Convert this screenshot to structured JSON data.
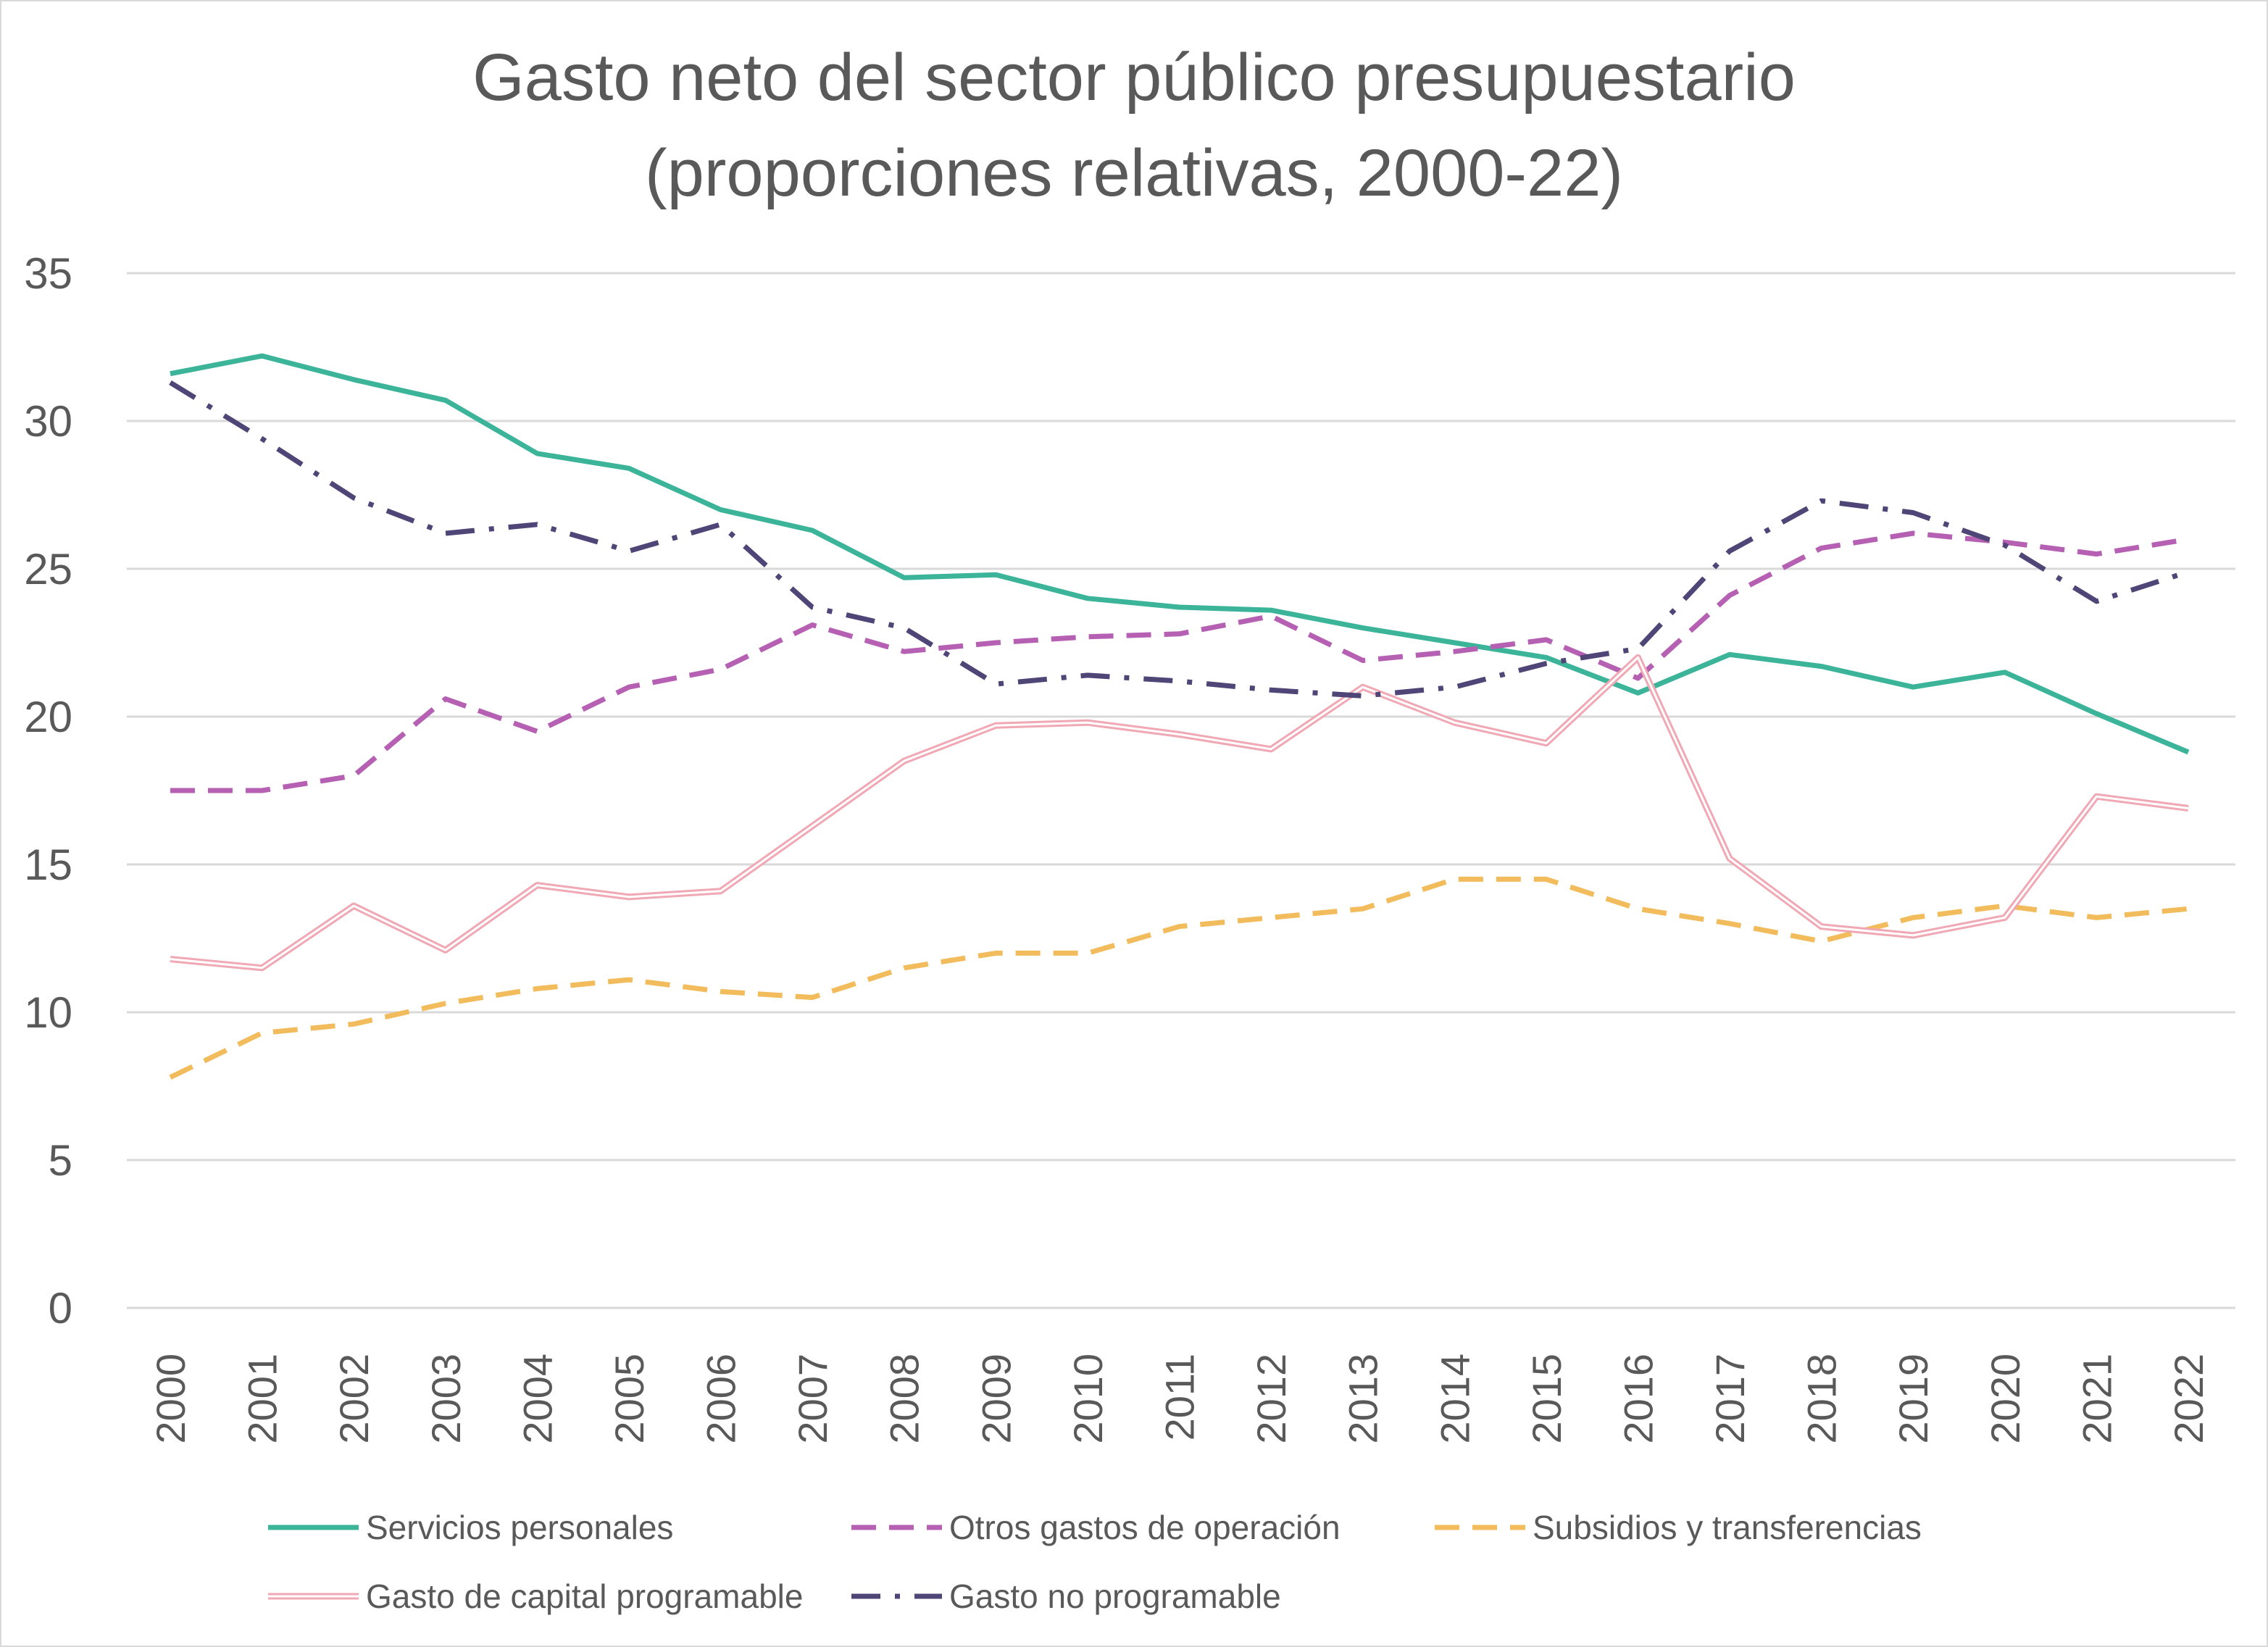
{
  "chart_data": {
    "type": "line",
    "title": "Gasto neto del sector público presupuestario",
    "subtitle": "(proporciones relativas, 2000-22)",
    "xlabel": "",
    "ylabel": "",
    "ylim": [
      0,
      35
    ],
    "yticks": [
      "0",
      "5",
      "10",
      "15",
      "20",
      "25",
      "30",
      "35"
    ],
    "grid": true,
    "legend_position": "bottom",
    "categories": [
      "2000",
      "2001",
      "2002",
      "2003",
      "2004",
      "2005",
      "2006",
      "2007",
      "2008",
      "2009",
      "2010",
      "2011",
      "2012",
      "2013",
      "2014",
      "2015",
      "2016",
      "2017",
      "2018",
      "2019",
      "2020",
      "2021",
      "2022"
    ],
    "series": [
      {
        "name": "Servicios personales",
        "color": "#3cb49a",
        "style": "solid",
        "values": [
          31.6,
          32.2,
          31.4,
          30.7,
          28.9,
          28.4,
          27.0,
          26.3,
          24.7,
          24.8,
          24.0,
          23.7,
          23.6,
          23.0,
          22.5,
          22.0,
          20.8,
          22.1,
          21.7,
          21.0,
          21.5,
          20.1,
          18.8
        ]
      },
      {
        "name": "Otros gastos de operación",
        "color": "#b560b2",
        "style": "dashed",
        "values": [
          17.5,
          17.5,
          18.0,
          20.6,
          19.5,
          21.0,
          21.6,
          23.1,
          22.2,
          22.5,
          22.7,
          22.8,
          23.4,
          21.9,
          22.2,
          22.6,
          21.3,
          24.1,
          25.7,
          26.2,
          25.9,
          25.5,
          26.0
        ]
      },
      {
        "name": "Subsidios y transferencias",
        "color": "#f2bb5b",
        "style": "dashed",
        "values": [
          7.8,
          9.3,
          9.6,
          10.3,
          10.8,
          11.1,
          10.7,
          10.5,
          11.5,
          12.0,
          12.0,
          12.9,
          13.2,
          13.5,
          14.5,
          14.5,
          13.5,
          13.0,
          12.4,
          13.2,
          13.6,
          13.2,
          13.5
        ]
      },
      {
        "name": "Gasto de capital programable",
        "color": "#f0a8b4",
        "style": "double",
        "values": [
          11.8,
          11.5,
          13.6,
          12.1,
          14.3,
          13.9,
          14.1,
          16.3,
          18.5,
          19.7,
          19.8,
          19.4,
          18.9,
          21.0,
          19.8,
          19.1,
          22.0,
          15.2,
          12.9,
          12.6,
          13.2,
          17.3,
          16.9
        ]
      },
      {
        "name": "Gasto no programable",
        "color": "#4f4577",
        "style": "dashdot",
        "values": [
          31.3,
          29.4,
          27.4,
          26.2,
          26.5,
          25.6,
          26.5,
          23.7,
          23.0,
          21.1,
          21.4,
          21.2,
          20.9,
          20.7,
          21.0,
          21.8,
          22.3,
          25.6,
          27.3,
          26.9,
          25.8,
          23.9,
          24.9
        ]
      }
    ]
  }
}
